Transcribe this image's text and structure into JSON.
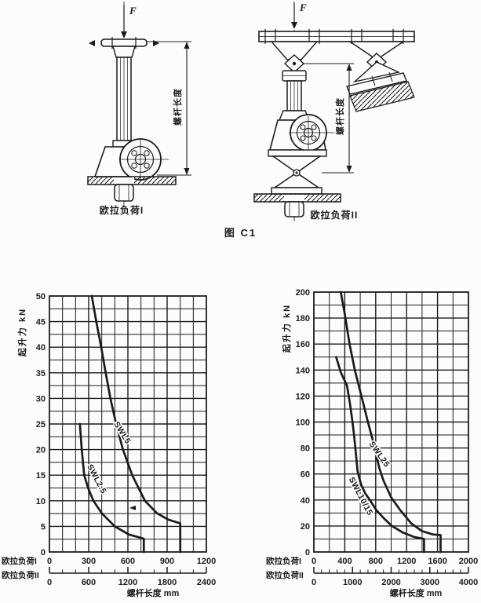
{
  "page": {
    "background": "#fcfcfa",
    "ink": "#1b1b1b",
    "caption": "图 C1"
  },
  "figures": {
    "force_label": "F",
    "dimension_label": "螺杆长度",
    "left_caption": "欧拉负荷I",
    "right_caption": "欧拉负荷II"
  },
  "chart_data": [
    {
      "type": "line",
      "ylabel": "起升力 kN",
      "xlabel": "螺杆长度 mm",
      "ylim": [
        0,
        50
      ],
      "ytick_step": 5,
      "y_minor_step": 2.5,
      "x_minor_step": 100,
      "grid": true,
      "axis1": {
        "label": "欧拉负荷I",
        "max": 1200,
        "ticks": [
          0,
          300,
          600,
          900,
          1200
        ]
      },
      "axis2": {
        "label": "欧拉负荷II",
        "max": 2400,
        "ticks": [
          0,
          600,
          1200,
          1800,
          2400
        ],
        "minor_step": 200
      },
      "series": [
        {
          "name": "SWL5",
          "label_pos": {
            "x": 540,
            "y": 23,
            "angle": 58
          },
          "points": [
            [
              324,
              50
            ],
            [
              358,
              45
            ],
            [
              396,
              40
            ],
            [
              430,
              35
            ],
            [
              466,
              30
            ],
            [
              510,
              25
            ],
            [
              562,
              20
            ],
            [
              633,
              15
            ],
            [
              730,
              10
            ],
            [
              820,
              7.6
            ],
            [
              910,
              6.3
            ],
            [
              1000,
              5.6
            ],
            [
              1000,
              0
            ]
          ]
        },
        {
          "name": "SWL2.5",
          "label_pos": {
            "x": 345,
            "y": 14,
            "angle": 62
          },
          "points": [
            [
              233,
              25
            ],
            [
              247,
              20
            ],
            [
              266,
              15
            ],
            [
              296,
              12.5
            ],
            [
              336,
              10
            ],
            [
              402,
              7.5
            ],
            [
              500,
              5
            ],
            [
              608,
              3.4
            ],
            [
              722,
              2.6
            ],
            [
              722,
              0
            ]
          ]
        }
      ],
      "marker": {
        "x": 612,
        "y": 8.6
      }
    },
    {
      "type": "line",
      "ylabel": "起升力 kN",
      "xlabel": "螺杆长度 mm",
      "ylim": [
        0,
        200
      ],
      "ytick_step": 20,
      "y_minor_step": 10,
      "x_minor_step": 200,
      "grid": true,
      "axis1": {
        "label": "欧拉负荷I",
        "max": 2000,
        "ticks": [
          0,
          400,
          800,
          1200,
          1600,
          2000
        ]
      },
      "axis2": {
        "label": "欧拉负荷II",
        "max": 4000,
        "ticks": [
          0,
          1000,
          2000,
          3000,
          4000
        ],
        "minor_step": 200
      },
      "series": [
        {
          "name": "SWL25",
          "label_pos": {
            "x": 820,
            "y": 74,
            "angle": 55
          },
          "points": [
            [
              348,
              200
            ],
            [
              400,
              183
            ],
            [
              462,
              160
            ],
            [
              530,
              140
            ],
            [
              615,
              120
            ],
            [
              700,
              100
            ],
            [
              790,
              80
            ],
            [
              845,
              65
            ],
            [
              900,
              55
            ],
            [
              1000,
              42
            ],
            [
              1120,
              32
            ],
            [
              1260,
              22
            ],
            [
              1400,
              16
            ],
            [
              1540,
              13.5
            ],
            [
              1640,
              13
            ],
            [
              1640,
              0
            ]
          ]
        },
        {
          "name": "SWL10/15",
          "label_pos": {
            "x": 578,
            "y": 42,
            "angle": 62
          },
          "points": [
            [
              288,
              150
            ],
            [
              350,
              138
            ],
            [
              428,
              128
            ],
            [
              465,
              115
            ],
            [
              495,
              102
            ],
            [
              520,
              90
            ],
            [
              545,
              75
            ],
            [
              565,
              62
            ],
            [
              610,
              52
            ],
            [
              665,
              45
            ],
            [
              725,
              40
            ],
            [
              810,
              32
            ],
            [
              905,
              26
            ],
            [
              1010,
              20
            ],
            [
              1150,
              15
            ],
            [
              1300,
              11.5
            ],
            [
              1425,
              10
            ],
            [
              1425,
              0
            ]
          ]
        }
      ]
    }
  ]
}
